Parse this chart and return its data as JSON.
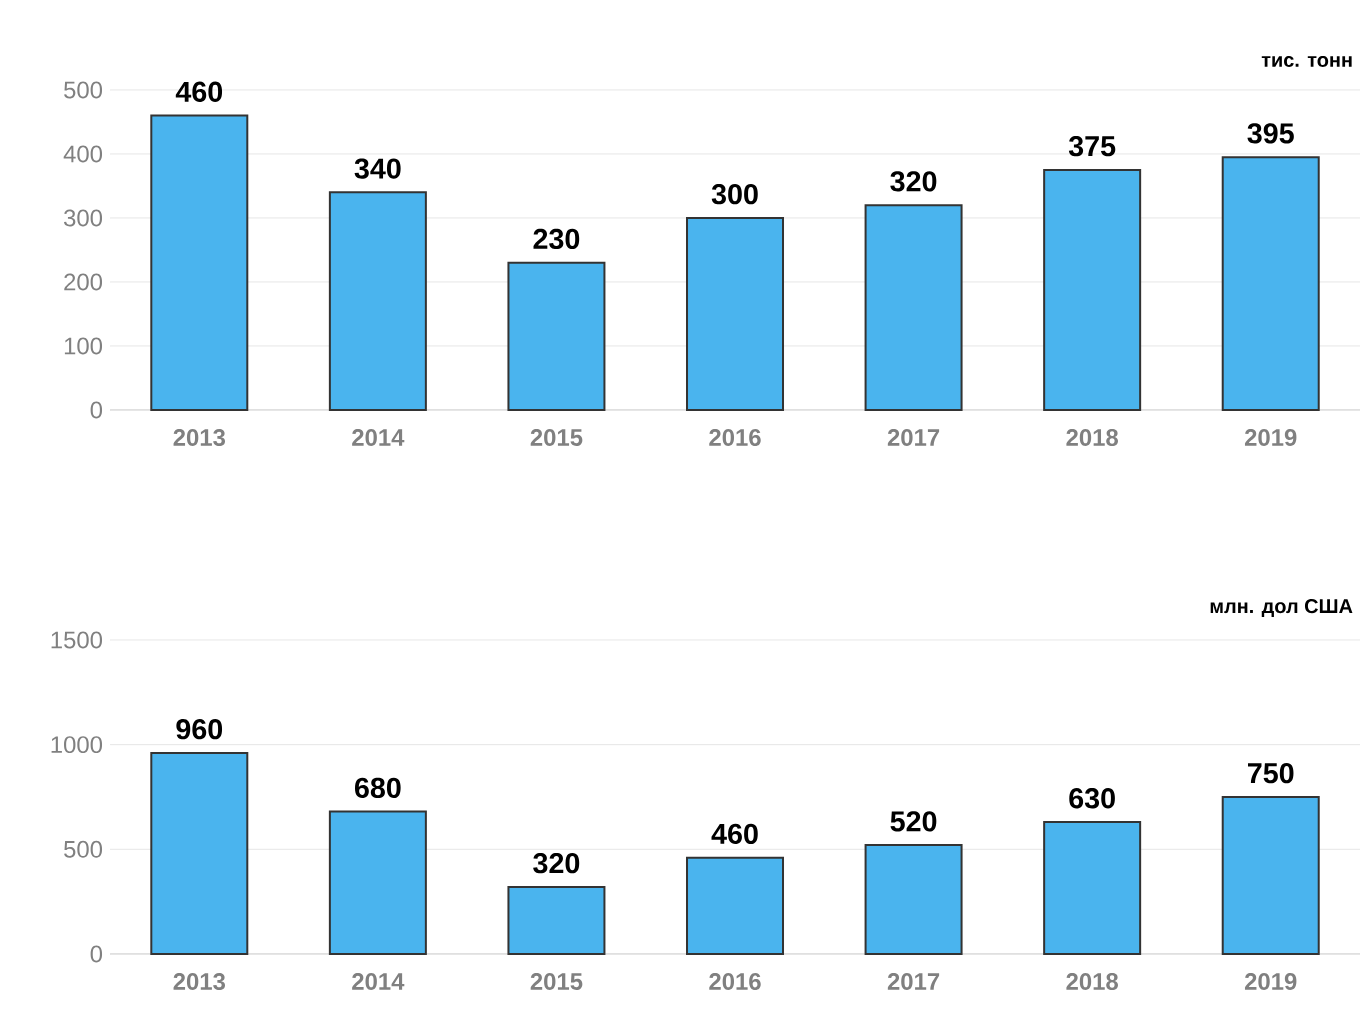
{
  "chart_data": [
    {
      "type": "bar",
      "ylabel": "тис. тонн",
      "categories": [
        "2013",
        "2014",
        "2015",
        "2016",
        "2017",
        "2018",
        "2019"
      ],
      "values": [
        460,
        340,
        230,
        300,
        320,
        375,
        395
      ],
      "color": "#4ab4ee",
      "ylim": [
        0,
        500
      ],
      "yticks": [
        0,
        100,
        200,
        300,
        400,
        500
      ],
      "grid": "y",
      "data_labels": true
    },
    {
      "type": "bar",
      "ylabel": "млн. дол США",
      "categories": [
        "2013",
        "2014",
        "2015",
        "2016",
        "2017",
        "2018",
        "2019"
      ],
      "values": [
        960,
        680,
        320,
        460,
        520,
        630,
        750
      ],
      "color": "#4ab4ee",
      "ylim": [
        0,
        1500
      ],
      "yticks": [
        0,
        500,
        1000,
        1500
      ],
      "grid": "y",
      "data_labels": true
    }
  ]
}
